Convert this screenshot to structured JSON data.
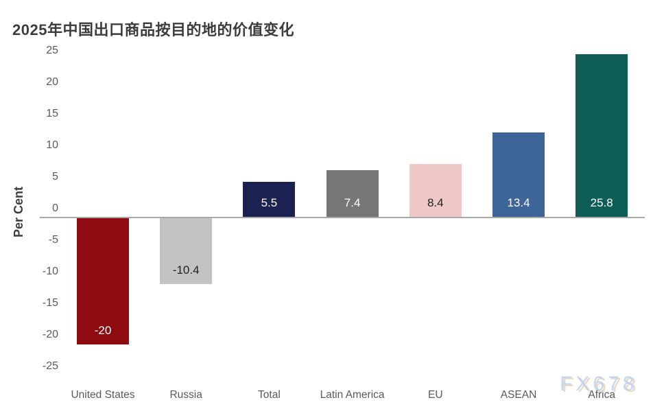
{
  "title": "2025年中国出口商品按目的地的价值变化",
  "watermark": "FX678",
  "chart_data": {
    "type": "bar",
    "title": "2025年中国出口商品按目的地的价值变化",
    "xlabel": "",
    "ylabel": "Per Cent",
    "ylim": [
      -25,
      25
    ],
    "yticks": [
      25,
      20,
      15,
      10,
      5,
      0,
      -5,
      -10,
      -15,
      -20,
      -25
    ],
    "grid": false,
    "legend": false,
    "categories": [
      "United States",
      "Russia",
      "Total",
      "Latin America",
      "EU",
      "ASEAN",
      "Africa"
    ],
    "values": [
      -20,
      -10.4,
      5.5,
      7.4,
      8.4,
      13.4,
      25.8
    ],
    "value_labels": [
      "-20",
      "-10.4",
      "5.5",
      "7.4",
      "8.4",
      "13.4",
      "25.8"
    ],
    "bar_colors": [
      "#8E0C0F",
      "#C3C3C3",
      "#1B2150",
      "#767676",
      "#EFC9C5",
      "#3D6598",
      "#0E5E55"
    ],
    "value_label_colors": [
      "#FFFFFF",
      "#212121",
      "#FFFFFF",
      "#FFFFFF",
      "#212121",
      "#FFFFFF",
      "#FFFFFF"
    ]
  },
  "colors": {
    "axis_line": "#A8A8A8",
    "tick_text": "#595959",
    "title_text": "#3C3C3C",
    "background": "#FFFFFF"
  }
}
